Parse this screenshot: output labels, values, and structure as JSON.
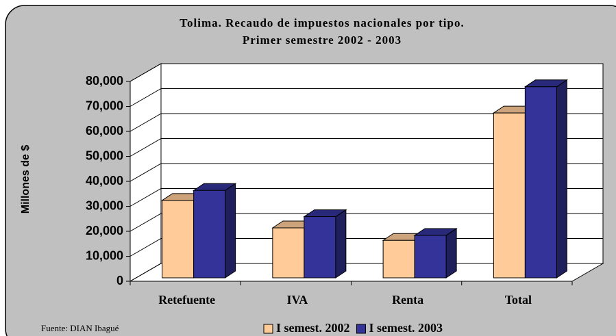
{
  "chart_data": {
    "type": "bar3d",
    "title": "Tolima. Recaudo de impuestos nacionales por tipo.",
    "subtitle": "Primer semestre 2002 - 2003",
    "y_label": "Millones de $",
    "source": "Fuente: DIAN Ibagué",
    "categories": [
      "Retefuente",
      "IVA",
      "Renta",
      "Total"
    ],
    "series": [
      {
        "name": "I semest. 2002",
        "color": "#ffcc99",
        "values": [
          31000,
          20000,
          15000,
          66000
        ]
      },
      {
        "name": "I semest. 2003",
        "color": "#333399",
        "values": [
          35000,
          24500,
          17000,
          76500
        ]
      }
    ],
    "ylim": [
      0,
      80000
    ],
    "yticks": [
      0,
      {
        "value": 10000,
        "label": "10,000"
      },
      {
        "value": 20000,
        "label": "20,000"
      },
      {
        "value": 30000,
        "label": "30,000"
      },
      {
        "value": 40000,
        "label": "40,000"
      },
      {
        "value": 50000,
        "label": "50,000"
      },
      {
        "value": 60000,
        "label": "60,000"
      },
      {
        "value": 70000,
        "label": "70,000"
      },
      {
        "value": 80000,
        "label": "80,000"
      }
    ],
    "grid": true
  }
}
